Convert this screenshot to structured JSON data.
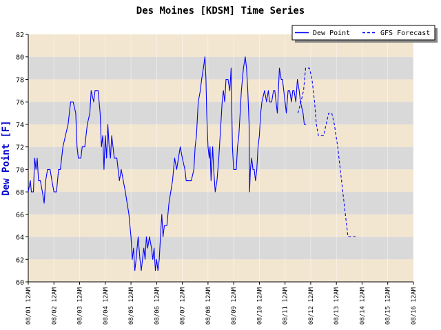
{
  "chart_data": {
    "type": "line",
    "title": "Des Moines [KDSM] Time Series",
    "ylabel": "Dew Point [F]",
    "xlabel": "",
    "ylim": [
      60,
      82
    ],
    "yticks": [
      60,
      62,
      64,
      66,
      68,
      70,
      72,
      74,
      76,
      78,
      80,
      82
    ],
    "xlim": [
      0,
      15
    ],
    "xticks": [
      "08/01 12AM",
      "08/02 12AM",
      "08/03 12AM",
      "08/04 12AM",
      "08/05 12AM",
      "08/06 12AM",
      "08/07 12AM",
      "08/08 12AM",
      "08/09 12AM",
      "08/10 12AM",
      "08/11 12AM",
      "08/12 12AM",
      "08/13 12AM",
      "08/14 12AM",
      "08/15 12AM",
      "08/16 12AM"
    ],
    "grid": "alternating horizontal bands",
    "legend": "top-right",
    "colors": {
      "band_light": "#f3e6d0",
      "band_dark": "#d9d9d9",
      "line": "#0000ff",
      "text": "#000000",
      "ylabel": "#0000cc"
    },
    "series": [
      {
        "name": "Dew Point",
        "style": "solid",
        "x_unit": "days since 08/01 12AM",
        "points": [
          [
            0,
            68
          ],
          [
            0.08,
            69
          ],
          [
            0.12,
            68
          ],
          [
            0.2,
            68
          ],
          [
            0.25,
            71
          ],
          [
            0.3,
            70
          ],
          [
            0.35,
            71
          ],
          [
            0.4,
            69
          ],
          [
            0.47,
            69
          ],
          [
            0.55,
            68
          ],
          [
            0.62,
            67
          ],
          [
            0.68,
            69
          ],
          [
            0.75,
            70
          ],
          [
            0.85,
            70
          ],
          [
            0.92,
            69
          ],
          [
            1.0,
            68
          ],
          [
            1.1,
            68
          ],
          [
            1.18,
            70
          ],
          [
            1.25,
            70
          ],
          [
            1.35,
            72
          ],
          [
            1.45,
            73
          ],
          [
            1.55,
            74
          ],
          [
            1.65,
            76
          ],
          [
            1.75,
            76
          ],
          [
            1.85,
            75
          ],
          [
            1.9,
            72
          ],
          [
            1.95,
            71
          ],
          [
            2.05,
            71
          ],
          [
            2.1,
            72
          ],
          [
            2.2,
            72
          ],
          [
            2.3,
            74
          ],
          [
            2.4,
            75
          ],
          [
            2.45,
            77
          ],
          [
            2.55,
            76
          ],
          [
            2.6,
            77
          ],
          [
            2.72,
            77
          ],
          [
            2.8,
            75
          ],
          [
            2.85,
            72
          ],
          [
            2.9,
            73
          ],
          [
            2.95,
            70
          ],
          [
            3.0,
            73
          ],
          [
            3.05,
            71
          ],
          [
            3.1,
            74
          ],
          [
            3.15,
            72
          ],
          [
            3.2,
            71
          ],
          [
            3.25,
            73
          ],
          [
            3.3,
            72
          ],
          [
            3.35,
            71
          ],
          [
            3.45,
            71
          ],
          [
            3.5,
            70
          ],
          [
            3.55,
            69
          ],
          [
            3.62,
            70
          ],
          [
            3.7,
            69
          ],
          [
            3.78,
            68
          ],
          [
            3.85,
            67
          ],
          [
            3.92,
            66
          ],
          [
            4.0,
            64
          ],
          [
            4.05,
            62
          ],
          [
            4.1,
            63
          ],
          [
            4.15,
            61
          ],
          [
            4.2,
            62
          ],
          [
            4.28,
            64
          ],
          [
            4.35,
            62
          ],
          [
            4.4,
            61
          ],
          [
            4.45,
            62
          ],
          [
            4.5,
            63
          ],
          [
            4.55,
            62
          ],
          [
            4.6,
            64
          ],
          [
            4.65,
            63
          ],
          [
            4.72,
            64
          ],
          [
            4.8,
            63
          ],
          [
            4.85,
            62
          ],
          [
            4.9,
            63
          ],
          [
            4.95,
            61
          ],
          [
            5.0,
            62
          ],
          [
            5.05,
            61
          ],
          [
            5.1,
            62
          ],
          [
            5.15,
            64
          ],
          [
            5.2,
            66
          ],
          [
            5.25,
            64
          ],
          [
            5.3,
            65
          ],
          [
            5.4,
            65
          ],
          [
            5.48,
            67
          ],
          [
            5.55,
            68
          ],
          [
            5.62,
            69
          ],
          [
            5.7,
            71
          ],
          [
            5.78,
            70
          ],
          [
            5.85,
            71
          ],
          [
            5.92,
            72
          ],
          [
            6.0,
            71
          ],
          [
            6.1,
            70
          ],
          [
            6.15,
            69
          ],
          [
            6.25,
            69
          ],
          [
            6.35,
            69
          ],
          [
            6.45,
            70
          ],
          [
            6.5,
            72
          ],
          [
            6.55,
            73
          ],
          [
            6.62,
            76
          ],
          [
            6.7,
            77
          ],
          [
            6.75,
            78
          ],
          [
            6.82,
            79
          ],
          [
            6.88,
            80
          ],
          [
            6.92,
            78
          ],
          [
            6.95,
            75
          ],
          [
            7.0,
            72
          ],
          [
            7.05,
            71
          ],
          [
            7.08,
            72
          ],
          [
            7.12,
            69
          ],
          [
            7.18,
            72
          ],
          [
            7.22,
            70
          ],
          [
            7.28,
            68
          ],
          [
            7.35,
            69
          ],
          [
            7.42,
            71
          ],
          [
            7.5,
            74
          ],
          [
            7.55,
            76
          ],
          [
            7.6,
            77
          ],
          [
            7.65,
            76
          ],
          [
            7.7,
            78
          ],
          [
            7.78,
            78
          ],
          [
            7.85,
            77
          ],
          [
            7.9,
            79
          ],
          [
            7.95,
            72
          ],
          [
            8.0,
            70
          ],
          [
            8.05,
            70
          ],
          [
            8.1,
            70
          ],
          [
            8.15,
            72
          ],
          [
            8.2,
            73
          ],
          [
            8.25,
            75
          ],
          [
            8.3,
            77
          ],
          [
            8.38,
            79
          ],
          [
            8.45,
            80
          ],
          [
            8.5,
            79
          ],
          [
            8.55,
            77
          ],
          [
            8.6,
            74
          ],
          [
            8.62,
            68
          ],
          [
            8.65,
            70
          ],
          [
            8.7,
            71
          ],
          [
            8.75,
            70
          ],
          [
            8.8,
            70
          ],
          [
            8.85,
            69
          ],
          [
            8.9,
            70
          ],
          [
            8.95,
            72
          ],
          [
            9.0,
            73
          ],
          [
            9.05,
            75
          ],
          [
            9.1,
            76
          ],
          [
            9.2,
            77
          ],
          [
            9.28,
            76
          ],
          [
            9.35,
            77
          ],
          [
            9.4,
            76
          ],
          [
            9.48,
            76
          ],
          [
            9.55,
            77
          ],
          [
            9.6,
            77
          ],
          [
            9.65,
            76
          ],
          [
            9.7,
            75
          ],
          [
            9.78,
            79
          ],
          [
            9.85,
            78
          ],
          [
            9.9,
            78
          ],
          [
            9.95,
            77
          ],
          [
            10.0,
            76
          ],
          [
            10.05,
            75
          ],
          [
            10.12,
            77
          ],
          [
            10.18,
            77
          ],
          [
            10.25,
            76
          ],
          [
            10.3,
            77
          ],
          [
            10.35,
            77
          ],
          [
            10.42,
            76
          ],
          [
            10.48,
            78
          ],
          [
            10.55,
            77
          ],
          [
            10.6,
            76
          ],
          [
            10.7,
            75
          ],
          [
            10.75,
            74
          ],
          [
            10.82,
            74
          ]
        ]
      },
      {
        "name": "GFS Forecast",
        "style": "dashed",
        "x_unit": "days since 08/01 12AM",
        "points": [
          [
            10.5,
            75
          ],
          [
            10.62,
            76
          ],
          [
            10.72,
            77
          ],
          [
            10.8,
            79
          ],
          [
            10.95,
            79
          ],
          [
            11.05,
            78
          ],
          [
            11.15,
            76
          ],
          [
            11.22,
            74
          ],
          [
            11.3,
            73
          ],
          [
            11.5,
            73
          ],
          [
            11.6,
            74
          ],
          [
            11.7,
            75
          ],
          [
            11.82,
            75
          ],
          [
            11.92,
            74
          ],
          [
            12.05,
            72
          ],
          [
            12.15,
            70
          ],
          [
            12.25,
            68
          ],
          [
            12.35,
            66
          ],
          [
            12.45,
            64
          ],
          [
            12.6,
            64
          ],
          [
            12.75,
            64
          ]
        ]
      }
    ]
  }
}
